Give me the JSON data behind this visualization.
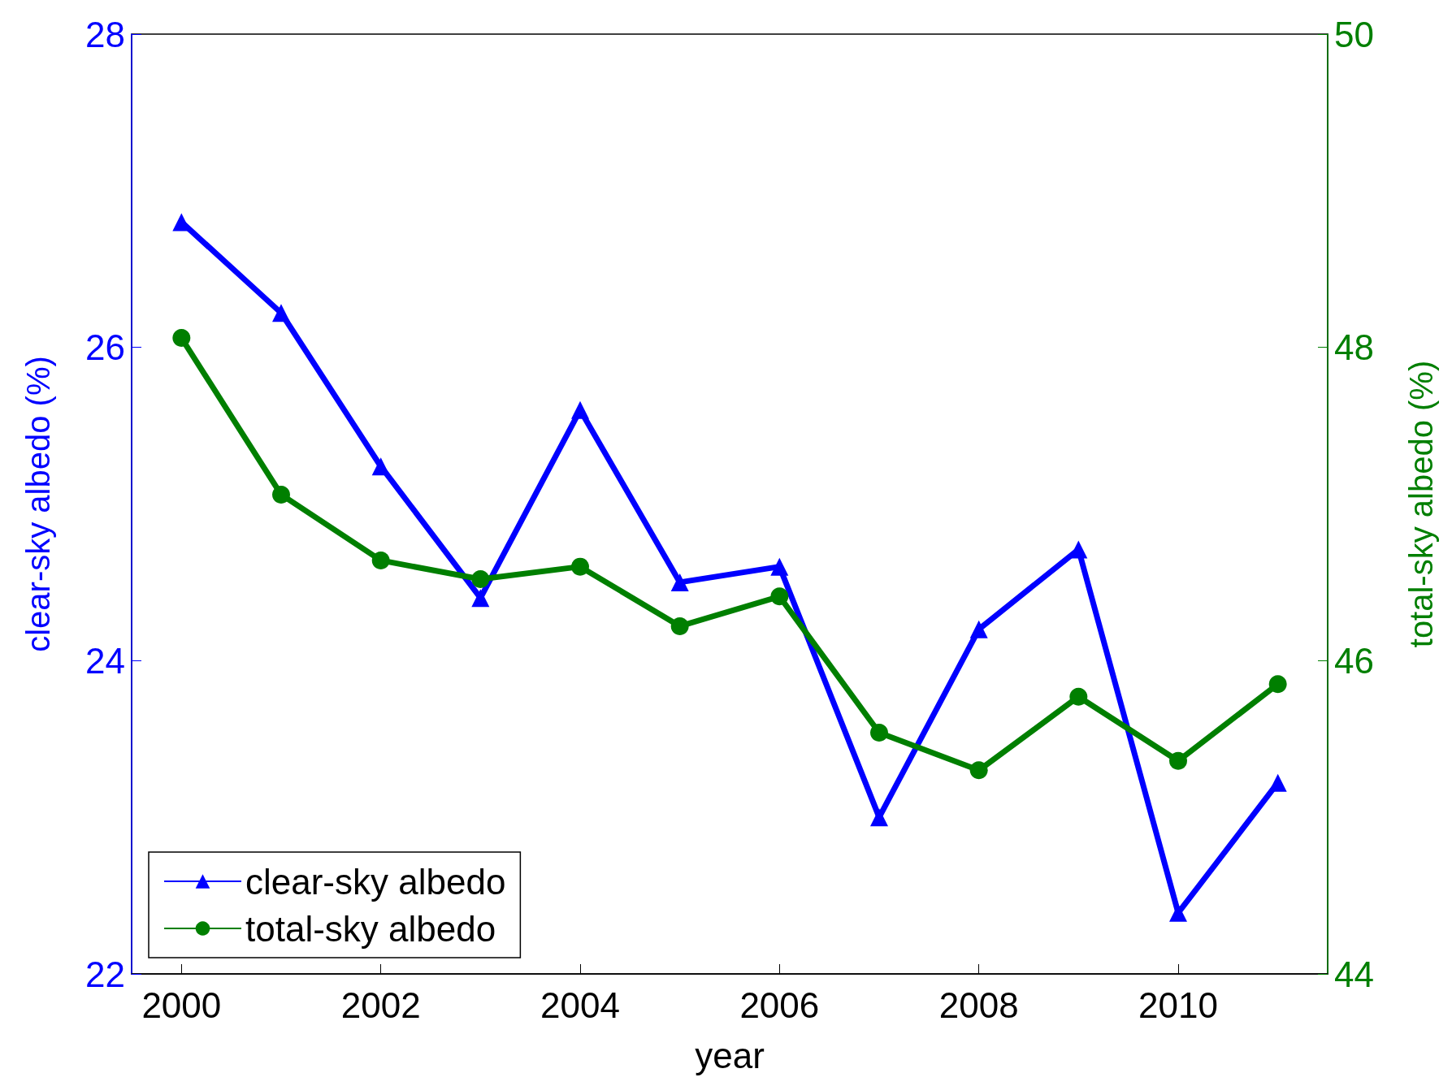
{
  "chart_data": {
    "type": "line",
    "xlabel": "year",
    "ylabel": "clear-sky albedo (%)",
    "y2label": "total-sky albedo (%)",
    "x": [
      2000,
      2001,
      2002,
      2003,
      2004,
      2005,
      2006,
      2007,
      2008,
      2009,
      2010,
      2011
    ],
    "xlim": [
      1999.5,
      2011.5
    ],
    "xticks": [
      2000,
      2002,
      2004,
      2006,
      2008,
      2010
    ],
    "ylim": [
      22,
      28
    ],
    "yticks": [
      22,
      24,
      26,
      28
    ],
    "y2lim": [
      44,
      50
    ],
    "y2ticks": [
      44,
      46,
      48,
      50
    ],
    "series": [
      {
        "name": "clear-sky albedo",
        "color": "#0000ff",
        "marker": "triangle",
        "values": [
          26.8,
          26.22,
          25.24,
          24.4,
          25.6,
          24.5,
          24.6,
          23.0,
          24.2,
          24.71,
          22.39,
          23.22
        ]
      },
      {
        "name": "total-sky albedo",
        "color": "#007f00",
        "marker": "circle",
        "axis": "y2",
        "values": [
          48.06,
          47.06,
          46.64,
          46.52,
          46.6,
          46.22,
          46.41,
          45.54,
          45.3,
          45.77,
          45.36,
          45.85
        ]
      }
    ],
    "legend": "bottom left",
    "grid": false,
    "line_style": "solid"
  }
}
